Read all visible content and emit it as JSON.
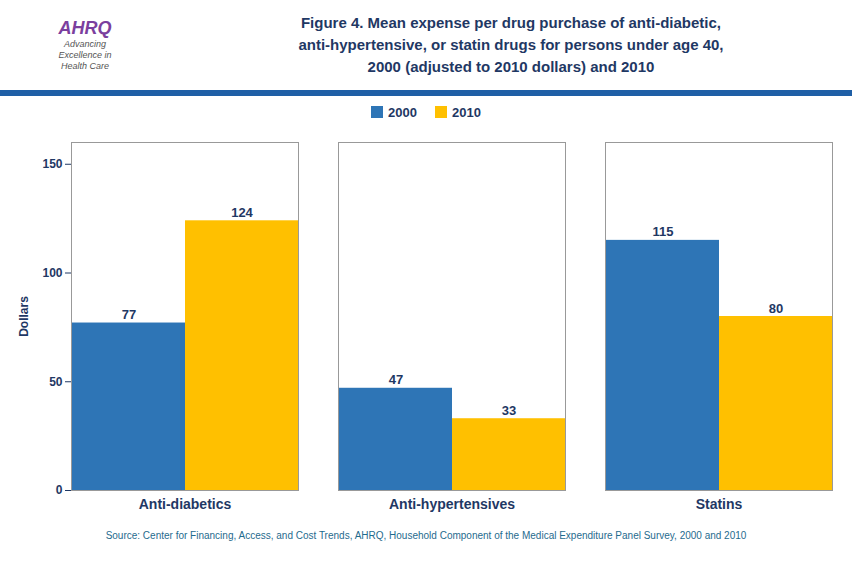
{
  "chart_data": {
    "type": "bar",
    "title": "Figure 4. Mean expense per drug purchase of anti-diabetic,\nanti-hypertensive, or statin drugs for persons under age 40,\n2000 (adjusted to 2010 dollars) and 2010",
    "categories": [
      "Anti-diabetics",
      "Anti-hypertensives",
      "Statins"
    ],
    "series": [
      {
        "name": "2000",
        "color": "#2E75B6",
        "values": [
          77,
          47,
          115
        ]
      },
      {
        "name": "2010",
        "color": "#FFC000",
        "values": [
          124,
          33,
          80
        ]
      }
    ],
    "ylabel": "Dollars",
    "ylim": [
      0,
      160
    ],
    "yticks": [
      0,
      50,
      100,
      150
    ],
    "grid": false,
    "legend": "top",
    "data_labels": true,
    "source": "Source: Center for Financing, Access, and Cost Trends, AHRQ, Household Component of the Medical Expenditure Panel Survey,  2000 and 2010",
    "annotations": [
      "AHRQ",
      "Advancing\nExcellence in\nHealth Care"
    ]
  }
}
